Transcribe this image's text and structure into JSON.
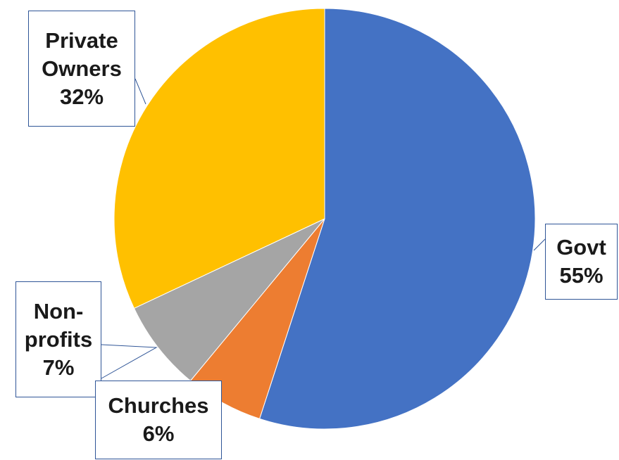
{
  "chart_data": {
    "type": "pie",
    "title": "",
    "start_angle_deg": 0,
    "direction": "clockwise",
    "slices": [
      {
        "name": "Govt",
        "value": 55,
        "label_lines": [
          "Govt",
          "55%"
        ],
        "color": "#4472c4"
      },
      {
        "name": "Churches",
        "value": 6,
        "label_lines": [
          "Churches",
          "6%"
        ],
        "color": "#ed7d31"
      },
      {
        "name": "Non-profits",
        "value": 7,
        "label_lines": [
          "Non-",
          "profits",
          "7%"
        ],
        "color": "#a5a5a5"
      },
      {
        "name": "Private Owners",
        "value": 32,
        "label_lines": [
          "Private",
          "Owners",
          "32%"
        ],
        "color": "#ffc000"
      }
    ],
    "legend": "none",
    "label_border_color": "#2f5597"
  }
}
